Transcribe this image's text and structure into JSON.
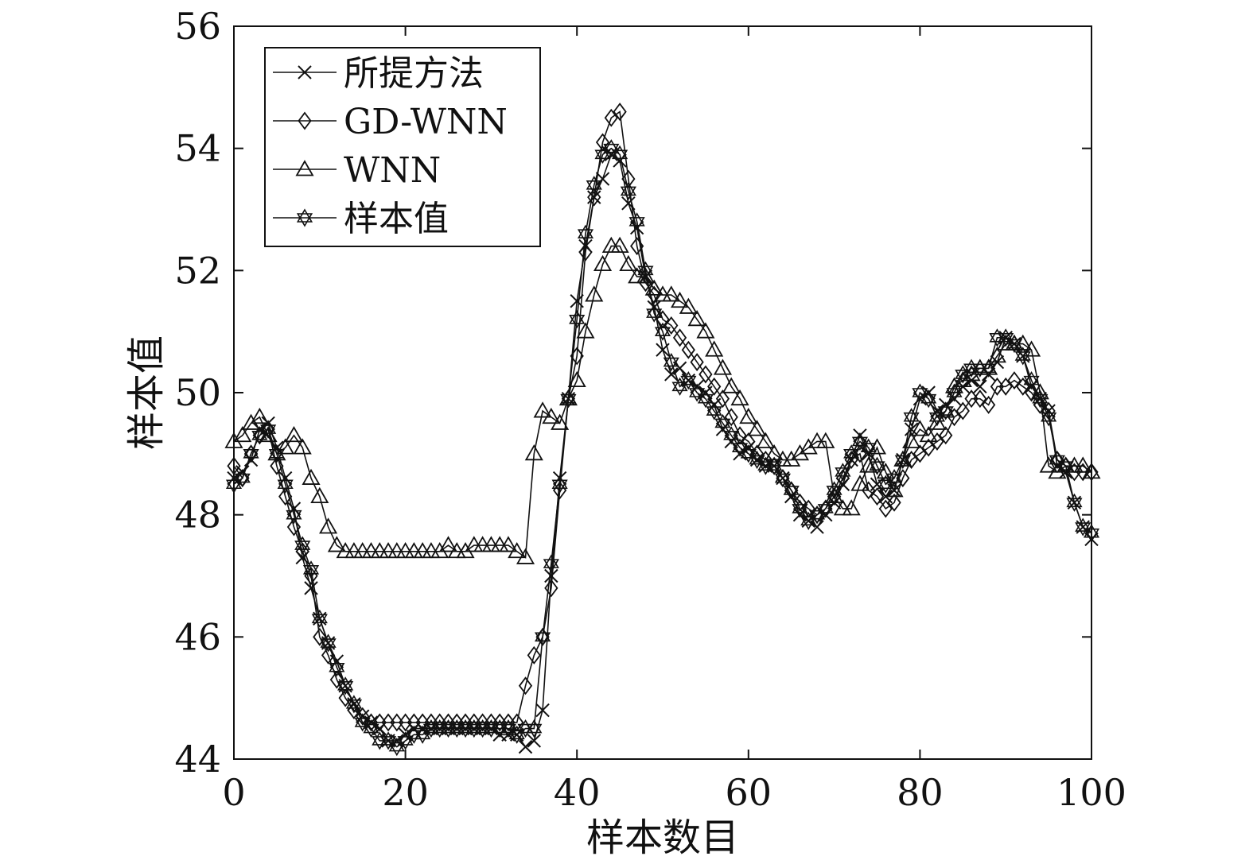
{
  "chart_data": {
    "type": "line",
    "title": "",
    "xlabel": "样本数目",
    "ylabel": "样本值",
    "xlim": [
      0,
      100
    ],
    "ylim": [
      44,
      56
    ],
    "xticks": [
      "0",
      "20",
      "40",
      "60",
      "80",
      "100"
    ],
    "yticks": [
      "44",
      "46",
      "48",
      "50",
      "52",
      "54",
      "56"
    ],
    "grid": false,
    "legend_position": "top-left",
    "series": [
      {
        "name": "所提方法",
        "marker": "x",
        "x": [
          0,
          1,
          2,
          3,
          4,
          5,
          6,
          7,
          8,
          9,
          10,
          11,
          12,
          13,
          14,
          15,
          16,
          17,
          18,
          19,
          20,
          21,
          22,
          23,
          24,
          25,
          26,
          27,
          28,
          29,
          30,
          31,
          32,
          33,
          34,
          35,
          36,
          37,
          38,
          39,
          40,
          41,
          42,
          43,
          44,
          45,
          46,
          47,
          48,
          49,
          50,
          51,
          52,
          53,
          54,
          55,
          56,
          57,
          58,
          59,
          60,
          61,
          62,
          63,
          64,
          65,
          66,
          67,
          68,
          69,
          70,
          71,
          72,
          73,
          74,
          75,
          76,
          77,
          78,
          79,
          80,
          81,
          82,
          83,
          84,
          85,
          86,
          87,
          88,
          89,
          90,
          91,
          92,
          93,
          94,
          95,
          96,
          97,
          98,
          99,
          100
        ],
        "y": [
          48.6,
          48.7,
          48.9,
          49.4,
          49.5,
          49.1,
          48.6,
          48.1,
          47.3,
          46.8,
          46.3,
          45.9,
          45.6,
          45.2,
          44.9,
          44.7,
          44.6,
          44.5,
          44.3,
          44.3,
          44.4,
          44.5,
          44.5,
          44.5,
          44.5,
          44.5,
          44.5,
          44.5,
          44.5,
          44.5,
          44.5,
          44.4,
          44.4,
          44.4,
          44.2,
          44.3,
          44.8,
          47.0,
          48.6,
          49.9,
          51.5,
          52.4,
          53.2,
          53.5,
          53.9,
          53.8,
          53.1,
          52.7,
          51.9,
          51.4,
          50.7,
          50.3,
          50.4,
          50.2,
          50.1,
          50.0,
          49.8,
          49.4,
          49.2,
          49.0,
          49.1,
          48.9,
          48.8,
          48.8,
          48.6,
          48.3,
          48.0,
          47.9,
          47.8,
          48.0,
          48.2,
          48.5,
          48.9,
          49.3,
          49.0,
          48.5,
          48.3,
          48.4,
          48.9,
          49.4,
          49.9,
          50.0,
          49.7,
          49.8,
          49.9,
          50.1,
          50.2,
          50.1,
          50.3,
          50.5,
          50.9,
          50.8,
          50.6,
          50.1,
          49.9,
          49.7,
          48.8,
          48.7,
          48.2,
          47.8,
          47.6
        ]
      },
      {
        "name": "GD-WNN",
        "marker": "diamond",
        "x": [
          0,
          1,
          2,
          3,
          4,
          5,
          6,
          7,
          8,
          9,
          10,
          11,
          12,
          13,
          14,
          15,
          16,
          17,
          18,
          19,
          20,
          21,
          22,
          23,
          24,
          25,
          26,
          27,
          28,
          29,
          30,
          31,
          32,
          33,
          34,
          35,
          36,
          37,
          38,
          39,
          40,
          41,
          42,
          43,
          44,
          45,
          46,
          47,
          48,
          49,
          50,
          51,
          52,
          53,
          54,
          55,
          56,
          57,
          58,
          59,
          60,
          61,
          62,
          63,
          64,
          65,
          66,
          67,
          68,
          69,
          70,
          71,
          72,
          73,
          74,
          75,
          76,
          77,
          78,
          79,
          80,
          81,
          82,
          83,
          84,
          85,
          86,
          87,
          88,
          89,
          90,
          91,
          92,
          93,
          94,
          95,
          96,
          97,
          98,
          99,
          100
        ],
        "y": [
          48.8,
          48.6,
          49.0,
          49.3,
          49.4,
          48.8,
          48.3,
          47.8,
          47.4,
          47.0,
          46.0,
          45.7,
          45.3,
          45.0,
          44.8,
          44.7,
          44.6,
          44.6,
          44.6,
          44.6,
          44.6,
          44.6,
          44.6,
          44.6,
          44.6,
          44.6,
          44.6,
          44.6,
          44.6,
          44.6,
          44.6,
          44.6,
          44.6,
          44.6,
          45.2,
          45.7,
          46.0,
          46.8,
          48.4,
          49.9,
          50.6,
          52.3,
          53.2,
          54.1,
          54.5,
          54.6,
          53.5,
          52.4,
          51.8,
          51.6,
          51.2,
          51.1,
          50.9,
          50.7,
          50.5,
          50.3,
          50.1,
          49.9,
          49.6,
          49.3,
          49.2,
          49.0,
          48.9,
          48.8,
          48.6,
          48.4,
          48.2,
          48.1,
          48.0,
          48.1,
          48.3,
          48.6,
          48.9,
          49.0,
          48.4,
          48.3,
          48.1,
          48.2,
          48.6,
          48.9,
          49.0,
          49.1,
          49.2,
          49.3,
          49.6,
          49.7,
          49.9,
          49.9,
          49.8,
          50.1,
          50.1,
          50.2,
          50.1,
          50.0,
          49.8,
          49.7,
          48.9,
          48.8,
          48.7,
          48.7,
          48.7
        ]
      },
      {
        "name": "WNN",
        "marker": "triangle",
        "x": [
          0,
          1,
          2,
          3,
          4,
          5,
          6,
          7,
          8,
          9,
          10,
          11,
          12,
          13,
          14,
          15,
          16,
          17,
          18,
          19,
          20,
          21,
          22,
          23,
          24,
          25,
          26,
          27,
          28,
          29,
          30,
          31,
          32,
          33,
          34,
          35,
          36,
          37,
          38,
          39,
          40,
          41,
          42,
          43,
          44,
          45,
          46,
          47,
          48,
          49,
          50,
          51,
          52,
          53,
          54,
          55,
          56,
          57,
          58,
          59,
          60,
          61,
          62,
          63,
          64,
          65,
          66,
          67,
          68,
          69,
          70,
          71,
          72,
          73,
          74,
          75,
          76,
          77,
          78,
          79,
          80,
          81,
          82,
          83,
          84,
          85,
          86,
          87,
          88,
          89,
          90,
          91,
          92,
          93,
          94,
          95,
          96,
          97,
          98,
          99,
          100
        ],
        "y": [
          49.2,
          49.3,
          49.5,
          49.6,
          49.3,
          49.0,
          49.1,
          49.3,
          49.1,
          48.6,
          48.3,
          47.8,
          47.5,
          47.4,
          47.4,
          47.4,
          47.4,
          47.4,
          47.4,
          47.4,
          47.4,
          47.4,
          47.4,
          47.4,
          47.4,
          47.5,
          47.4,
          47.4,
          47.5,
          47.5,
          47.5,
          47.5,
          47.5,
          47.4,
          47.3,
          49.0,
          49.7,
          49.6,
          49.5,
          49.9,
          50.2,
          51.0,
          51.6,
          52.1,
          52.4,
          52.4,
          52.1,
          51.9,
          51.9,
          51.7,
          51.6,
          51.6,
          51.5,
          51.4,
          51.2,
          51.0,
          50.7,
          50.4,
          50.1,
          49.9,
          49.6,
          49.4,
          49.2,
          49.0,
          48.9,
          48.9,
          49.0,
          49.1,
          49.2,
          49.2,
          48.3,
          48.1,
          48.1,
          48.5,
          48.8,
          49.1,
          48.7,
          48.4,
          48.9,
          49.2,
          49.4,
          49.3,
          49.5,
          49.7,
          50.1,
          50.2,
          50.3,
          50.4,
          50.4,
          50.6,
          50.8,
          50.8,
          50.8,
          50.7,
          50.0,
          48.8,
          48.7,
          48.8,
          48.8,
          48.8,
          48.7
        ]
      },
      {
        "name": "样本值",
        "marker": "star",
        "x": [
          0,
          1,
          2,
          3,
          4,
          5,
          6,
          7,
          8,
          9,
          10,
          11,
          12,
          13,
          14,
          15,
          16,
          17,
          18,
          19,
          20,
          21,
          22,
          23,
          24,
          25,
          26,
          27,
          28,
          29,
          30,
          31,
          32,
          33,
          34,
          35,
          36,
          37,
          38,
          39,
          40,
          41,
          42,
          43,
          44,
          45,
          46,
          47,
          48,
          49,
          50,
          51,
          52,
          53,
          54,
          55,
          56,
          57,
          58,
          59,
          60,
          61,
          62,
          63,
          64,
          65,
          66,
          67,
          68,
          69,
          70,
          71,
          72,
          73,
          74,
          75,
          76,
          77,
          78,
          79,
          80,
          81,
          82,
          83,
          84,
          85,
          86,
          87,
          88,
          89,
          90,
          91,
          92,
          93,
          94,
          95,
          96,
          97,
          98,
          99,
          100
        ],
        "y": [
          48.5,
          48.6,
          49.0,
          49.3,
          49.4,
          49.0,
          48.5,
          48.0,
          47.5,
          47.1,
          46.3,
          45.9,
          45.5,
          45.2,
          44.9,
          44.6,
          44.5,
          44.3,
          44.3,
          44.2,
          44.3,
          44.4,
          44.4,
          44.5,
          44.5,
          44.5,
          44.5,
          44.5,
          44.5,
          44.5,
          44.5,
          44.5,
          44.5,
          44.4,
          44.5,
          44.5,
          46.0,
          47.2,
          48.5,
          49.9,
          51.2,
          52.6,
          53.4,
          53.9,
          54.0,
          53.9,
          53.3,
          52.8,
          52.0,
          51.3,
          51.0,
          50.5,
          50.1,
          50.2,
          50.0,
          49.9,
          49.7,
          49.5,
          49.3,
          49.1,
          49.0,
          48.9,
          48.8,
          48.8,
          48.6,
          48.4,
          48.1,
          47.9,
          48.0,
          48.1,
          48.4,
          48.7,
          49.0,
          49.2,
          49.1,
          48.8,
          48.5,
          48.6,
          48.9,
          49.6,
          50.0,
          49.9,
          49.6,
          49.7,
          50.0,
          50.3,
          50.4,
          50.4,
          50.4,
          50.9,
          50.9,
          50.8,
          50.6,
          50.2,
          49.9,
          49.6,
          48.9,
          48.8,
          48.2,
          47.8,
          47.7
        ]
      }
    ]
  }
}
